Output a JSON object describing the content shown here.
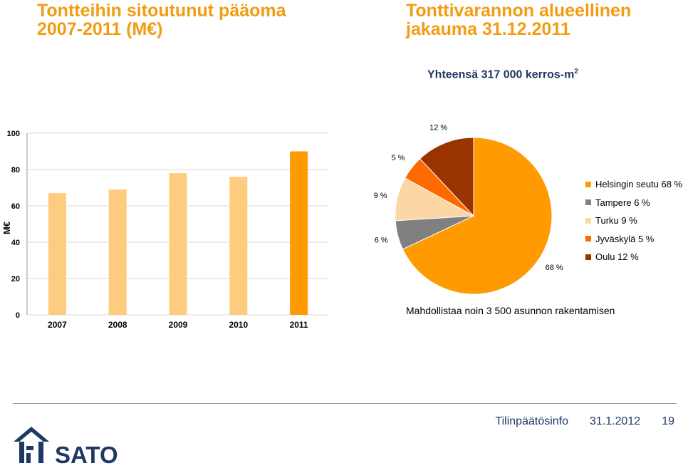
{
  "colors": {
    "title": "#F39C12",
    "navy": "#1f3864",
    "bar_light": "#FECC7E",
    "bar_dark": "#FF9A00",
    "grid": "#d9d9d9"
  },
  "left_title": "Tontteihin sitoutunut pääoma 2007-2011 (M€)",
  "right_title": "Tonttivarannon alueellinen jakauma 31.12.2011",
  "subtitle": "Yhteensä 317 000 kerros-m",
  "subtitle_sup": "2",
  "note": "Mahdollistaa noin 3 500 asunnon rakentamisen",
  "footer": {
    "label": "Tilinpäätösinfo",
    "date": "31.1.2012",
    "page": "19"
  },
  "logo": {
    "text": "SATO",
    "icon": "house-logo-icon"
  },
  "chart_data": [
    {
      "type": "bar",
      "categories": [
        "2007",
        "2008",
        "2009",
        "2010",
        "2011"
      ],
      "values": [
        67,
        69,
        78,
        76,
        90
      ],
      "highlight_index": 4,
      "ylabel": "M€",
      "ylim": [
        0,
        100
      ],
      "yticks": [
        "0",
        "20",
        "40",
        "60",
        "80",
        "100"
      ],
      "grid": true
    },
    {
      "type": "pie",
      "slices": [
        {
          "label": "Helsingin seutu 68 %",
          "value": 68,
          "data_label": "68 %",
          "color": "#FF9A00"
        },
        {
          "label": "Tampere 6 %",
          "value": 6,
          "data_label": "6 %",
          "color": "#808080"
        },
        {
          "label": "Turku 9 %",
          "value": 9,
          "data_label": "9 %",
          "color": "#FDD6A6"
        },
        {
          "label": "Jyväskylä 5 %",
          "value": 5,
          "data_label": "5 %",
          "color": "#FF6A00"
        },
        {
          "label": "Oulu 12 %",
          "value": 12,
          "data_label": "12 %",
          "color": "#993300"
        }
      ],
      "legend_position": "right"
    }
  ]
}
